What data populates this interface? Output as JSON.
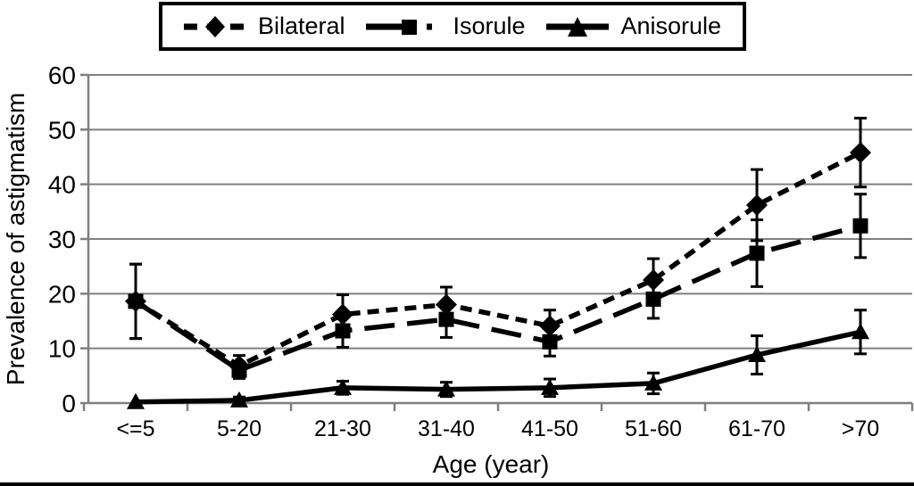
{
  "chart_data": {
    "type": "line",
    "title": "",
    "xlabel": "Age (year)",
    "ylabel": "Prevalence of astigmatism",
    "categories": [
      "<=5",
      "5-20",
      "21-30",
      "31-40",
      "41-50",
      "51-60",
      "61-70",
      ">70"
    ],
    "ylim": [
      0,
      60
    ],
    "ytick_step": 10,
    "grid": true,
    "legend_position": "top",
    "error_bars": true,
    "series": [
      {
        "name": "Bilateral",
        "marker": "diamond",
        "line": "dashed",
        "values": [
          18.6,
          6.8,
          16.2,
          18.0,
          14.1,
          22.5,
          36.2,
          45.8
        ],
        "errors": [
          6.8,
          1.9,
          3.6,
          3.2,
          2.9,
          3.9,
          6.5,
          6.3
        ]
      },
      {
        "name": "Isorule",
        "marker": "square",
        "line": "long-dash",
        "values": [
          18.6,
          6.0,
          13.2,
          15.3,
          11.2,
          19.0,
          27.4,
          32.4
        ],
        "errors": [
          6.8,
          1.5,
          3.0,
          3.3,
          2.6,
          3.5,
          6.1,
          5.8
        ]
      },
      {
        "name": "Anisorule",
        "marker": "triangle",
        "line": "solid",
        "values": [
          0.2,
          0.5,
          2.8,
          2.5,
          2.8,
          3.6,
          8.8,
          13.0
        ],
        "errors": [
          0,
          0.6,
          1.2,
          1.3,
          1.6,
          1.9,
          3.5,
          4.0
        ]
      }
    ],
    "colors": {
      "series": "#000000",
      "grid": "#7f7f7f",
      "background": "#ffffff"
    }
  }
}
